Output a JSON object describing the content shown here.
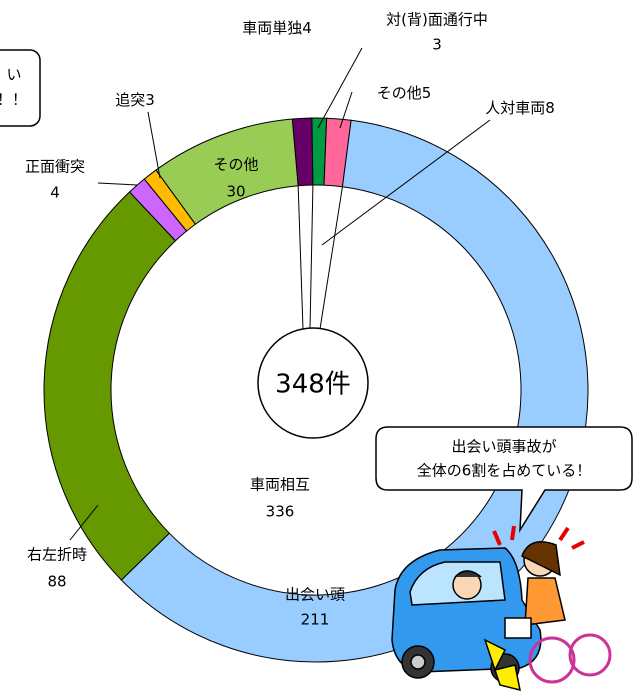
{
  "chart_data": {
    "type": "donut",
    "total_label": "348件",
    "categories": [
      "車両単独",
      "対(背)面通行中",
      "その他",
      "出会い頭",
      "右左折時",
      "正面衝突",
      "追突",
      "その他"
    ],
    "values": [
      4,
      3,
      5,
      211,
      88,
      4,
      3,
      30
    ],
    "colors": [
      "#660066",
      "#009944",
      "#ff6699",
      "#99ccff",
      "#669900",
      "#cc66ff",
      "#ffbb00",
      "#99cc55"
    ],
    "groups": [
      {
        "name": "人対車両",
        "value": 8
      },
      {
        "name": "車両相互",
        "value": 336
      }
    ],
    "callouts": [
      [
        "い",
        "！！"
      ],
      [
        "出会い頭事故が",
        "全体の6割を占めている！"
      ]
    ]
  }
}
